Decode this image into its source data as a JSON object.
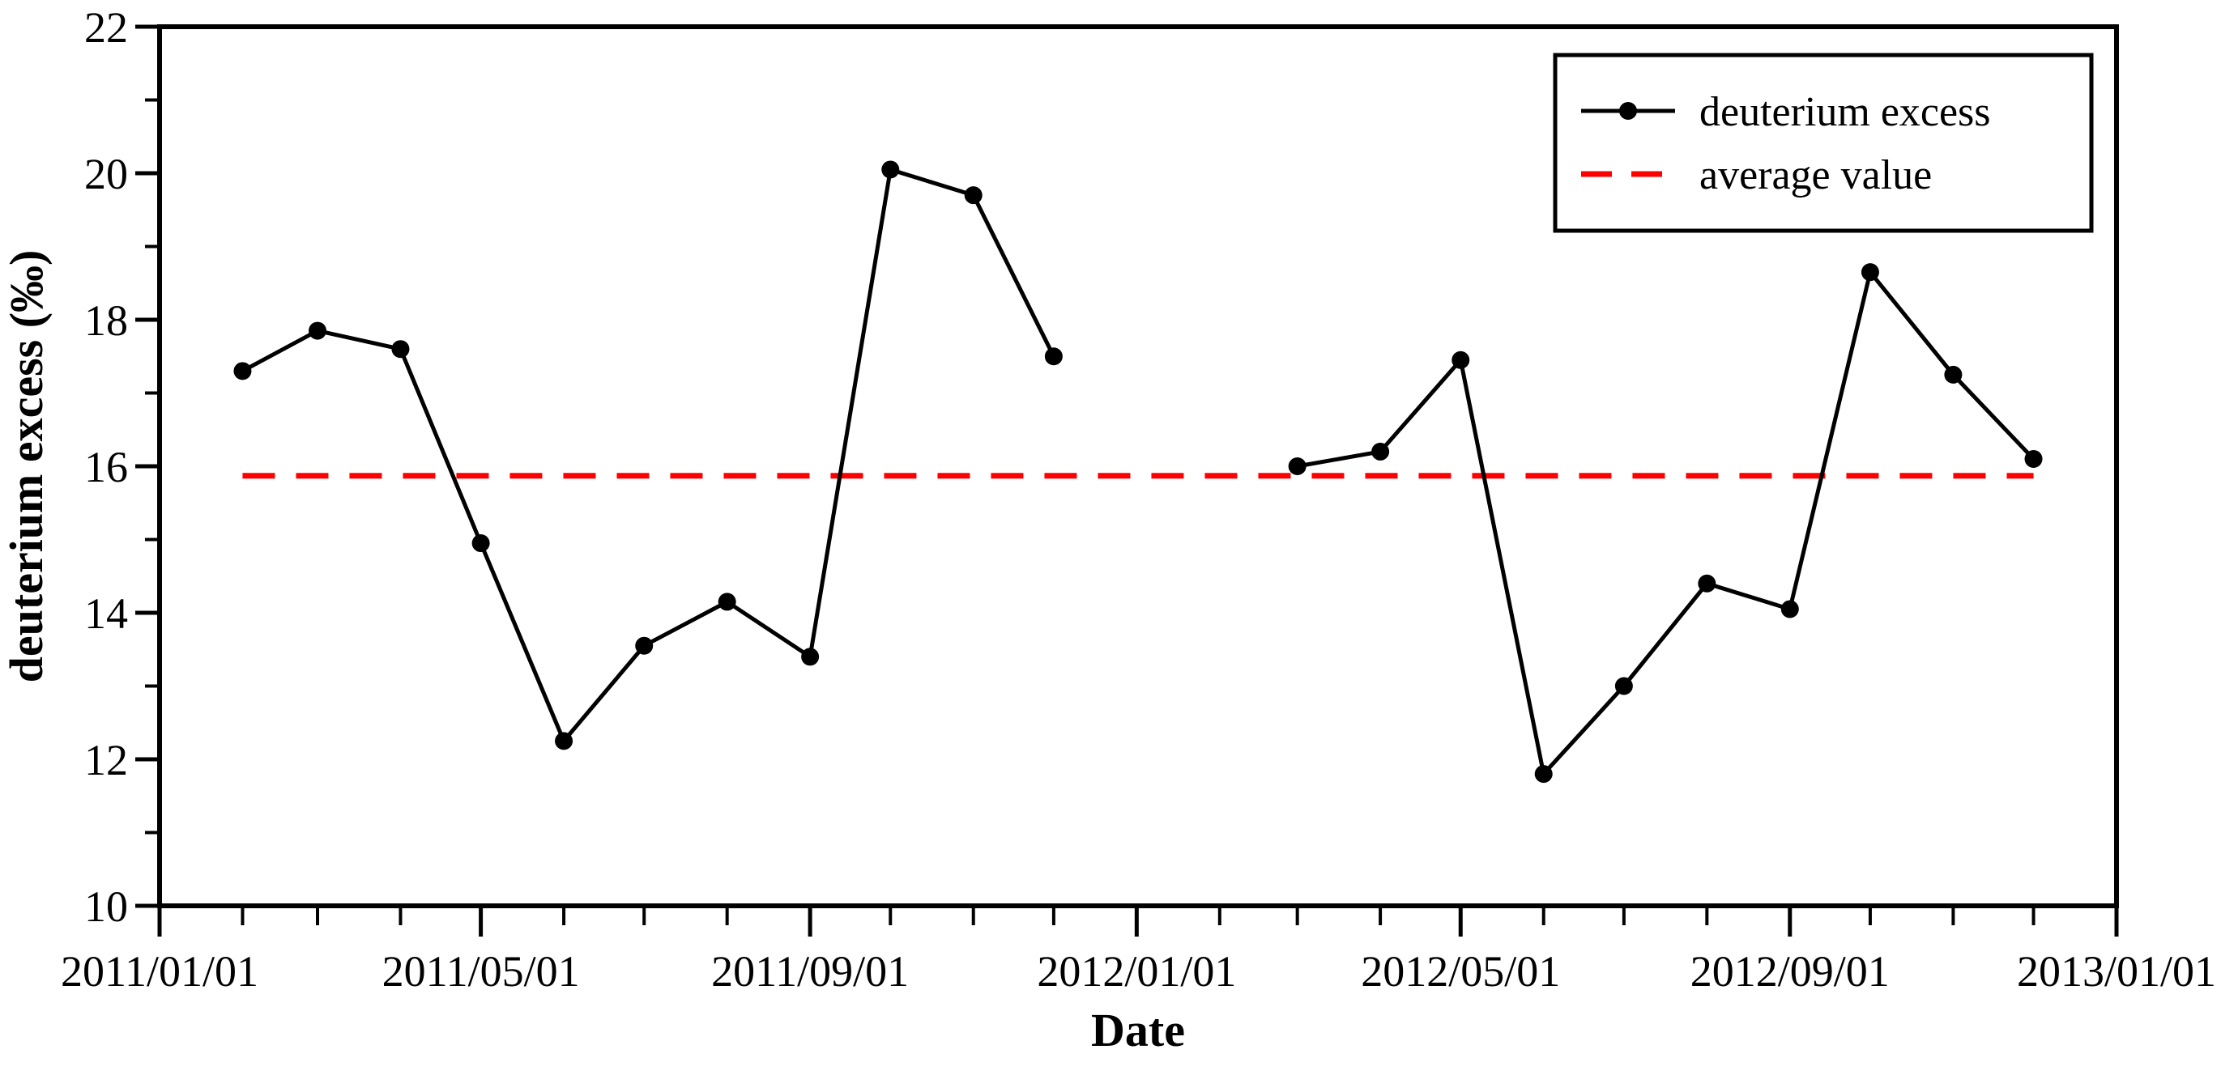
{
  "axes": {
    "xlabel": "Date",
    "ylabel": "deuterium excess (‰)"
  },
  "legend": {
    "item1": "deuterium excess",
    "item2": "average value"
  },
  "colors": {
    "series": "#000000",
    "average": "#ff0000",
    "frame": "#000000",
    "background": "#ffffff"
  },
  "chart_data": {
    "type": "line",
    "title": "",
    "xlabel": "Date",
    "ylabel": "deuterium excess (‰)",
    "ylim": [
      10,
      22
    ],
    "y_major_ticks": [
      10,
      12,
      14,
      16,
      18,
      20,
      22
    ],
    "y_minor_ticks": [
      11,
      13,
      15,
      17,
      19,
      21
    ],
    "grid": "off",
    "legend_position": "top-right",
    "x_axis": {
      "total_days": 731,
      "major_ticks": [
        {
          "day": 0,
          "label": "2011/01/01"
        },
        {
          "day": 120,
          "label": "2011/05/01"
        },
        {
          "day": 243,
          "label": "2011/09/01"
        },
        {
          "day": 365,
          "label": "2012/01/01"
        },
        {
          "day": 486,
          "label": "2012/05/01"
        },
        {
          "day": 609,
          "label": "2012/09/01"
        },
        {
          "day": 731,
          "label": "2013/01/01"
        }
      ],
      "minor_tick_days": [
        31,
        59,
        90,
        151,
        181,
        212,
        273,
        304,
        334,
        396,
        425,
        456,
        517,
        547,
        578,
        639,
        670,
        700
      ]
    },
    "series": [
      {
        "name": "deuterium excess",
        "color": "#000000",
        "marker": "filled-circle",
        "segments": [
          {
            "points": [
              {
                "date": "2011/02/01",
                "day": 31,
                "value": 17.3
              },
              {
                "date": "2011/03/01",
                "day": 59,
                "value": 17.85
              },
              {
                "date": "2011/04/01",
                "day": 90,
                "value": 17.6
              },
              {
                "date": "2011/05/01",
                "day": 120,
                "value": 14.95
              },
              {
                "date": "2011/06/01",
                "day": 151,
                "value": 12.25
              },
              {
                "date": "2011/07/01",
                "day": 181,
                "value": 13.55
              },
              {
                "date": "2011/08/01",
                "day": 212,
                "value": 14.15
              },
              {
                "date": "2011/09/01",
                "day": 243,
                "value": 13.4
              },
              {
                "date": "2011/10/01",
                "day": 273,
                "value": 20.05
              },
              {
                "date": "2011/11/01",
                "day": 304,
                "value": 19.7
              },
              {
                "date": "2011/12/01",
                "day": 334,
                "value": 17.5
              }
            ]
          },
          {
            "points": [
              {
                "date": "2012/03/01",
                "day": 425,
                "value": 16.0
              },
              {
                "date": "2012/04/01",
                "day": 456,
                "value": 16.2
              },
              {
                "date": "2012/05/01",
                "day": 486,
                "value": 17.45
              },
              {
                "date": "2012/06/01",
                "day": 517,
                "value": 11.8
              },
              {
                "date": "2012/07/01",
                "day": 547,
                "value": 13.0
              },
              {
                "date": "2012/08/01",
                "day": 578,
                "value": 14.4
              },
              {
                "date": "2012/09/01",
                "day": 609,
                "value": 14.05
              },
              {
                "date": "2012/10/01",
                "day": 639,
                "value": 18.65
              },
              {
                "date": "2012/11/01",
                "day": 670,
                "value": 17.25
              },
              {
                "date": "2012/12/01",
                "day": 700,
                "value": 16.1
              }
            ]
          }
        ]
      }
    ],
    "average_line": {
      "name": "average value",
      "value": 15.87,
      "color": "#ff0000",
      "style": "dashed",
      "from_day": 31,
      "to_day": 700
    }
  }
}
